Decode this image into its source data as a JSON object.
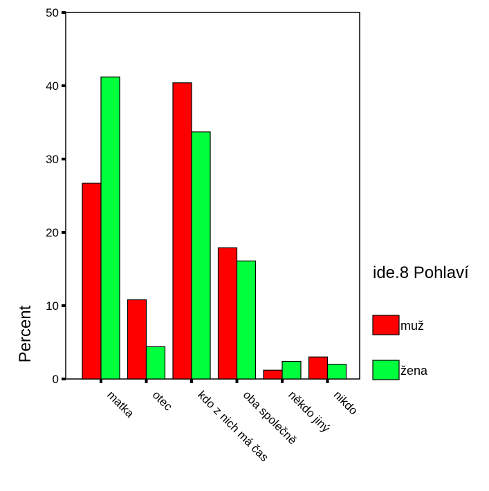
{
  "chart_data": {
    "type": "bar",
    "title": "",
    "xlabel": "",
    "ylabel": "Percent",
    "ylim": [
      0,
      50
    ],
    "yticks": [
      0,
      10,
      20,
      30,
      40,
      50
    ],
    "grid": false,
    "legend_position": "right",
    "legend_title": "ide.8 Pohlaví",
    "categories": [
      "matka",
      "otec",
      "kdo z nich má čas",
      "oba společně",
      "někdo jiný",
      "nikdo"
    ],
    "series": [
      {
        "name": "muž",
        "color": "#ff0000",
        "values": [
          26.7,
          10.8,
          40.4,
          17.9,
          1.2,
          3.0
        ]
      },
      {
        "name": "žena",
        "color": "#00ff3c",
        "values": [
          41.2,
          4.4,
          33.7,
          16.1,
          2.4,
          2.0
        ]
      }
    ]
  }
}
